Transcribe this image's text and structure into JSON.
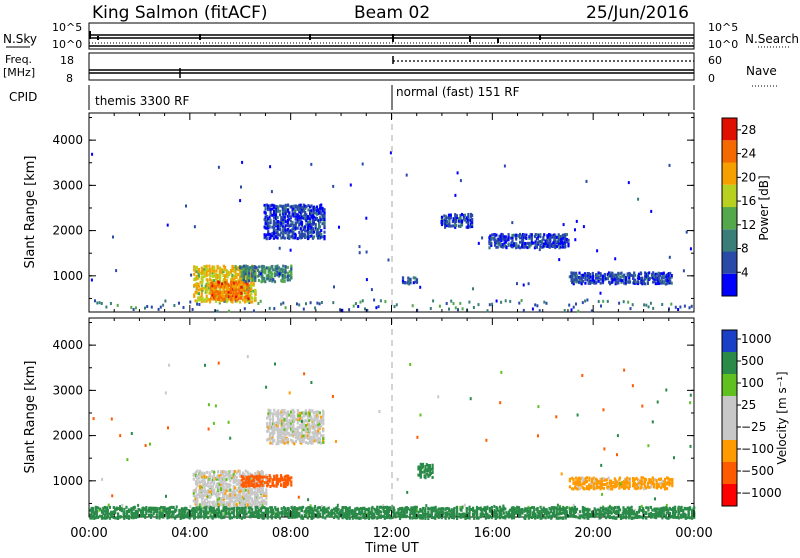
{
  "header": {
    "radar": "King Salmon (fitACF)",
    "beam": "Beam 02",
    "date": "25/Jun/2016"
  },
  "strips": {
    "nsky_label": "N.Sky",
    "nsky_ticks": [
      "10^5",
      "10^0"
    ],
    "nsearch_label": "N.Search",
    "nsearch_ticks": [
      "10^5",
      "10^0"
    ],
    "freq_label": "Freq.",
    "freq_unit": "[MHz]",
    "freq_ticks": [
      "18",
      "8"
    ],
    "nave_label": "Nave",
    "nave_ticks": [
      "60",
      "0"
    ],
    "cpid_label": "CPID",
    "cpid_segments": [
      "themis 3300 RF",
      "normal (fast) 151 RF"
    ]
  },
  "colors": {
    "power_scale": [
      "#0000ff",
      "#2a4aa8",
      "#3a7e7a",
      "#52a84a",
      "#b8d020",
      "#f6a000",
      "#f46a00",
      "#e01000"
    ],
    "velocity_scale": [
      "#ff0000",
      "#ff5a00",
      "#ff9a00",
      "#c8c8c8",
      "#c8c8c8",
      "#60c020",
      "#2a8a48",
      "#1a40c8"
    ]
  },
  "chart_data": [
    {
      "type": "heatmap",
      "title": "",
      "ylabel": "Slant Range [km]",
      "xlabel": "Time UT",
      "ylim": [
        200,
        4600
      ],
      "xlim": [
        0,
        24
      ],
      "x_ticks": [
        "00:00",
        "04:00",
        "08:00",
        "12:00",
        "16:00",
        "20:00",
        "00:00"
      ],
      "y_ticks": [
        "1000",
        "2000",
        "3000",
        "4000"
      ],
      "colorbar": {
        "label": "Power [dB]",
        "ticks": [
          "4",
          "8",
          "12",
          "16",
          "20",
          "24",
          "28"
        ],
        "range": [
          0,
          30
        ]
      },
      "regions": [
        {
          "t": [
            4.1,
            6.6
          ],
          "r": [
            450,
            1250
          ],
          "value": 18
        },
        {
          "t": [
            4.8,
            6.3
          ],
          "r": [
            500,
            900
          ],
          "value": 24
        },
        {
          "t": [
            6.0,
            8.0
          ],
          "r": [
            900,
            1250
          ],
          "value": 10
        },
        {
          "t": [
            6.9,
            9.3
          ],
          "r": [
            1850,
            2600
          ],
          "value": 5
        },
        {
          "t": [
            13.9,
            15.2
          ],
          "r": [
            2100,
            2400
          ],
          "value": 5
        },
        {
          "t": [
            15.8,
            19.0
          ],
          "r": [
            1650,
            1950
          ],
          "value": 5
        },
        {
          "t": [
            19.0,
            23.1
          ],
          "r": [
            850,
            1100
          ],
          "value": 5
        },
        {
          "t": [
            12.4,
            13.0
          ],
          "r": [
            850,
            1000
          ],
          "value": 6
        }
      ]
    },
    {
      "type": "heatmap",
      "title": "",
      "ylabel": "Slant Range [km]",
      "xlabel": "Time UT",
      "ylim": [
        200,
        4600
      ],
      "xlim": [
        0,
        24
      ],
      "x_ticks": [
        "00:00",
        "04:00",
        "08:00",
        "12:00",
        "16:00",
        "20:00",
        "00:00"
      ],
      "y_ticks": [
        "1000",
        "2000",
        "3000",
        "4000"
      ],
      "colorbar": {
        "label": "Velocity [m s⁻¹]",
        "ticks": [
          "1000",
          "500",
          "100",
          "25",
          "−25",
          "−100",
          "−500",
          "−1000"
        ]
      },
      "regions": [
        {
          "t": [
            4.1,
            7.0
          ],
          "r": [
            450,
            1250
          ],
          "value": 0
        },
        {
          "t": [
            6.0,
            8.0
          ],
          "r": [
            900,
            1150
          ],
          "value": -300
        },
        {
          "t": [
            7.0,
            9.3
          ],
          "r": [
            1850,
            2600
          ],
          "value": 0
        },
        {
          "t": [
            13.0,
            13.6
          ],
          "r": [
            1100,
            1400
          ],
          "value": 150
        },
        {
          "t": [
            0.0,
            24.0
          ],
          "r": [
            200,
            450
          ],
          "value": 150
        },
        {
          "t": [
            19.0,
            23.1
          ],
          "r": [
            850,
            1100
          ],
          "value": -50
        }
      ]
    }
  ]
}
